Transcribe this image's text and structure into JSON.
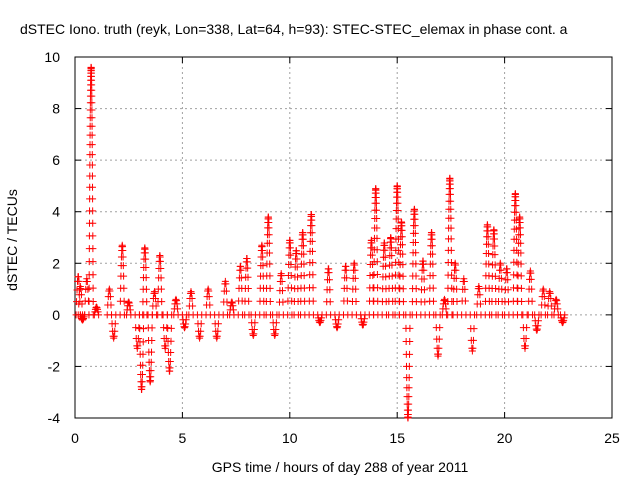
{
  "chart_data": {
    "type": "scatter",
    "title": "dSTEC Iono. truth (reyk, Lon=338, Lat=64, h=93): STEC-STEC_elemax in phase cont. a",
    "xlabel": "GPS time / hours of day 288 of year 2011",
    "ylabel": "dSTEC  / TECUs",
    "xlim": [
      0,
      25
    ],
    "ylim": [
      -4,
      10
    ],
    "xticks": [
      "0",
      "5",
      "10",
      "15",
      "20",
      "25"
    ],
    "yticks": [
      "-4",
      "-2",
      "0",
      "2",
      "4",
      "6",
      "8",
      "10"
    ],
    "grid": true,
    "marker": "plus",
    "color": "#ff0000",
    "arcs": [
      [
        0.15,
        0.0,
        1.5
      ],
      [
        0.25,
        0.0,
        1.1
      ],
      [
        0.35,
        0.0,
        -0.2
      ],
      [
        0.55,
        0.0,
        1.4
      ],
      [
        0.75,
        0.0,
        9.6
      ],
      [
        1.0,
        0.0,
        0.3
      ],
      [
        1.6,
        0.0,
        1.0
      ],
      [
        1.8,
        0.0,
        -0.9
      ],
      [
        2.2,
        0.0,
        2.7
      ],
      [
        2.5,
        0.0,
        0.5
      ],
      [
        2.9,
        0.0,
        -1.3
      ],
      [
        3.1,
        0.0,
        -2.9
      ],
      [
        3.25,
        0.0,
        2.6
      ],
      [
        3.5,
        0.0,
        -2.6
      ],
      [
        3.7,
        0.0,
        0.9
      ],
      [
        3.95,
        0.0,
        2.3
      ],
      [
        4.2,
        0.0,
        -1.3
      ],
      [
        4.4,
        0.0,
        -2.2
      ],
      [
        4.7,
        0.0,
        0.6
      ],
      [
        5.1,
        0.0,
        -0.5
      ],
      [
        5.4,
        0.0,
        0.9
      ],
      [
        5.8,
        0.0,
        -0.9
      ],
      [
        6.2,
        0.0,
        1.0
      ],
      [
        6.6,
        0.0,
        -0.9
      ],
      [
        7.0,
        0.0,
        1.3
      ],
      [
        7.3,
        0.0,
        0.5
      ],
      [
        7.7,
        0.0,
        1.9
      ],
      [
        8.0,
        0.0,
        2.2
      ],
      [
        8.3,
        0.0,
        -0.8
      ],
      [
        8.7,
        0.0,
        2.7
      ],
      [
        9.0,
        0.0,
        3.8
      ],
      [
        9.3,
        0.0,
        -0.8
      ],
      [
        9.6,
        0.0,
        1.6
      ],
      [
        10.0,
        0.0,
        2.9
      ],
      [
        10.3,
        0.0,
        2.5
      ],
      [
        10.6,
        0.0,
        3.2
      ],
      [
        11.0,
        0.0,
        3.9
      ],
      [
        11.4,
        0.0,
        -0.3
      ],
      [
        11.8,
        0.0,
        1.8
      ],
      [
        12.2,
        0.0,
        -0.5
      ],
      [
        12.6,
        0.0,
        1.9
      ],
      [
        13.0,
        0.0,
        2.0
      ],
      [
        13.4,
        0.0,
        -0.4
      ],
      [
        13.8,
        0.0,
        2.9
      ],
      [
        14.0,
        0.0,
        4.9
      ],
      [
        14.4,
        0.0,
        2.8
      ],
      [
        14.7,
        0.0,
        3.0
      ],
      [
        15.0,
        0.0,
        5.0
      ],
      [
        15.2,
        0.0,
        3.6
      ],
      [
        15.5,
        0.0,
        -4.0
      ],
      [
        15.8,
        0.0,
        4.1
      ],
      [
        16.2,
        0.0,
        2.1
      ],
      [
        16.6,
        0.0,
        3.2
      ],
      [
        16.9,
        0.0,
        -1.6
      ],
      [
        17.2,
        0.0,
        0.6
      ],
      [
        17.45,
        0.0,
        5.3
      ],
      [
        17.7,
        0.0,
        2.0
      ],
      [
        18.1,
        0.0,
        1.4
      ],
      [
        18.5,
        0.0,
        -1.4
      ],
      [
        18.8,
        0.0,
        1.1
      ],
      [
        19.2,
        0.0,
        3.5
      ],
      [
        19.5,
        0.0,
        3.3
      ],
      [
        19.8,
        0.0,
        2.0
      ],
      [
        20.1,
        0.0,
        1.8
      ],
      [
        20.5,
        0.0,
        4.7
      ],
      [
        20.7,
        0.0,
        3.8
      ],
      [
        20.95,
        0.0,
        -1.3
      ],
      [
        21.2,
        0.0,
        1.7
      ],
      [
        21.5,
        0.0,
        -0.6
      ],
      [
        21.8,
        0.0,
        1.0
      ],
      [
        22.1,
        0.0,
        0.9
      ],
      [
        22.4,
        0.0,
        0.6
      ],
      [
        22.7,
        0.0,
        -0.3
      ]
    ]
  }
}
